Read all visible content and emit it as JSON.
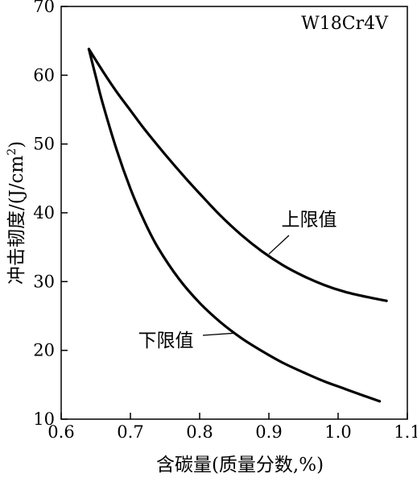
{
  "chart_data": {
    "type": "line",
    "title": "W18Cr4V",
    "xlabel": "含碳量(质量分数,%)",
    "ylabel_main": "冲击韧度/(J/cm",
    "ylabel_sup": "2",
    "ylabel_close": ")",
    "xlim": [
      0.6,
      1.1
    ],
    "ylim": [
      10,
      70
    ],
    "x_ticks": [
      0.6,
      0.7,
      0.8,
      0.9,
      1.0,
      1.1
    ],
    "x_tick_labels": [
      "0.6",
      "0.7",
      "0.8",
      "0.9",
      "1.0",
      "1.1"
    ],
    "y_ticks": [
      10,
      20,
      30,
      40,
      50,
      60,
      70
    ],
    "y_tick_labels": [
      "10",
      "20",
      "30",
      "40",
      "50",
      "60",
      "70"
    ],
    "grid": false,
    "series": [
      {
        "name": "上限值",
        "x": [
          0.64,
          0.66,
          0.68,
          0.7,
          0.72,
          0.75,
          0.78,
          0.8,
          0.83,
          0.86,
          0.89,
          0.92,
          0.95,
          0.98,
          1.01,
          1.04,
          1.07
        ],
        "y": [
          63.8,
          60.6,
          57.6,
          54.9,
          52.2,
          48.5,
          45.0,
          42.8,
          39.6,
          36.8,
          34.4,
          32.4,
          30.8,
          29.5,
          28.5,
          27.8,
          27.2
        ]
      },
      {
        "name": "下限值",
        "x": [
          0.64,
          0.65,
          0.66,
          0.68,
          0.7,
          0.72,
          0.74,
          0.77,
          0.8,
          0.83,
          0.86,
          0.89,
          0.92,
          0.95,
          0.98,
          1.01,
          1.04,
          1.06
        ],
        "y": [
          63.8,
          59.8,
          55.9,
          49.2,
          43.5,
          38.8,
          34.9,
          30.4,
          26.9,
          24.1,
          21.8,
          19.9,
          18.2,
          16.8,
          15.5,
          14.4,
          13.3,
          12.6
        ]
      }
    ],
    "annotations": [
      {
        "text": "上限值",
        "series": 0,
        "target_x": 0.9,
        "target_y": 34.0
      },
      {
        "text": "下限值",
        "series": 1,
        "target_x": 0.85,
        "target_y": 22.5
      }
    ]
  }
}
